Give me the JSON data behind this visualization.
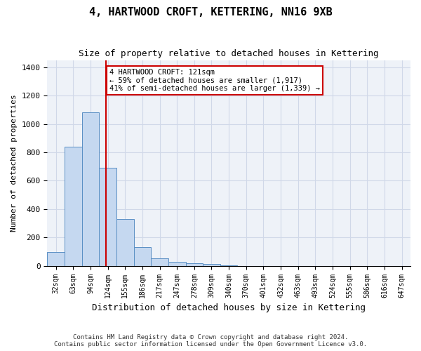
{
  "title": "4, HARTWOOD CROFT, KETTERING, NN16 9XB",
  "subtitle": "Size of property relative to detached houses in Kettering",
  "xlabel": "Distribution of detached houses by size in Kettering",
  "ylabel": "Number of detached properties",
  "footer_line1": "Contains HM Land Registry data © Crown copyright and database right 2024.",
  "footer_line2": "Contains public sector information licensed under the Open Government Licence v3.0.",
  "bar_values": [
    95,
    840,
    1080,
    690,
    330,
    130,
    55,
    30,
    20,
    15,
    5,
    0,
    0,
    0,
    0,
    0,
    0,
    0,
    0,
    0,
    0
  ],
  "categories": [
    "32sqm",
    "63sqm",
    "94sqm",
    "124sqm",
    "155sqm",
    "186sqm",
    "217sqm",
    "247sqm",
    "278sqm",
    "309sqm",
    "340sqm",
    "370sqm",
    "401sqm",
    "432sqm",
    "463sqm",
    "493sqm",
    "524sqm",
    "555sqm",
    "586sqm",
    "616sqm",
    "647sqm"
  ],
  "bar_color": "#c5d8f0",
  "bar_edgecolor": "#5a8fc4",
  "grid_color": "#d0d8e8",
  "background_color": "#eef2f8",
  "property_line_x": 2.9,
  "annotation_text": "4 HARTWOOD CROFT: 121sqm\n← 59% of detached houses are smaller (1,917)\n41% of semi-detached houses are larger (1,339) →",
  "annotation_box_color": "#ffffff",
  "annotation_edge_color": "#cc0000",
  "property_line_color": "#cc0000",
  "ylim": [
    0,
    1450
  ],
  "yticks": [
    0,
    200,
    400,
    600,
    800,
    1000,
    1200,
    1400
  ]
}
